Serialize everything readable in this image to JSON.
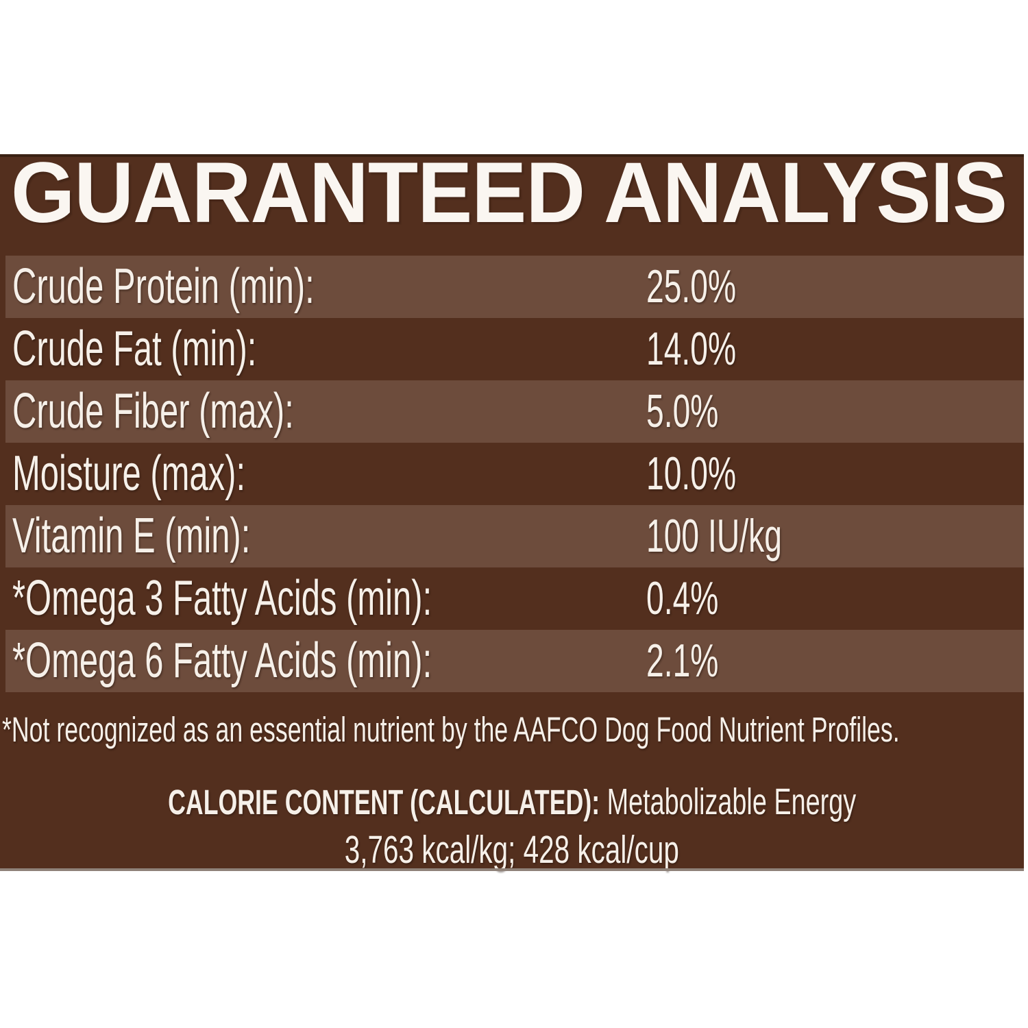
{
  "title": "GUARANTEED ANALYSIS",
  "colors": {
    "panel_dark": "#532F1E",
    "row_light": "#6D4C3C",
    "text": "#F6F0E9",
    "page_background": "#FFFFFF"
  },
  "table": {
    "rows": [
      {
        "label": "Crude Protein (min):",
        "value": "25.0%"
      },
      {
        "label": "Crude Fat (min):",
        "value": "14.0%"
      },
      {
        "label": "Crude Fiber (max):",
        "value": "5.0%"
      },
      {
        "label": "Moisture (max):",
        "value": "10.0%"
      },
      {
        "label": "Vitamin E (min):",
        "value": "100 IU/kg"
      },
      {
        "label": "*Omega 3 Fatty Acids (min):",
        "value": "0.4%"
      },
      {
        "label": "*Omega 6 Fatty Acids (min):",
        "value": "2.1%"
      }
    ]
  },
  "footnote": "*Not recognized as an essential nutrient by the AAFCO Dog Food Nutrient Profiles.",
  "calorie": {
    "heading": "CALORIE CONTENT (CALCULATED):",
    "subheading": " Metabolizable Energy",
    "line2": "3,763 kcal/kg; 428 kcal/cup"
  }
}
